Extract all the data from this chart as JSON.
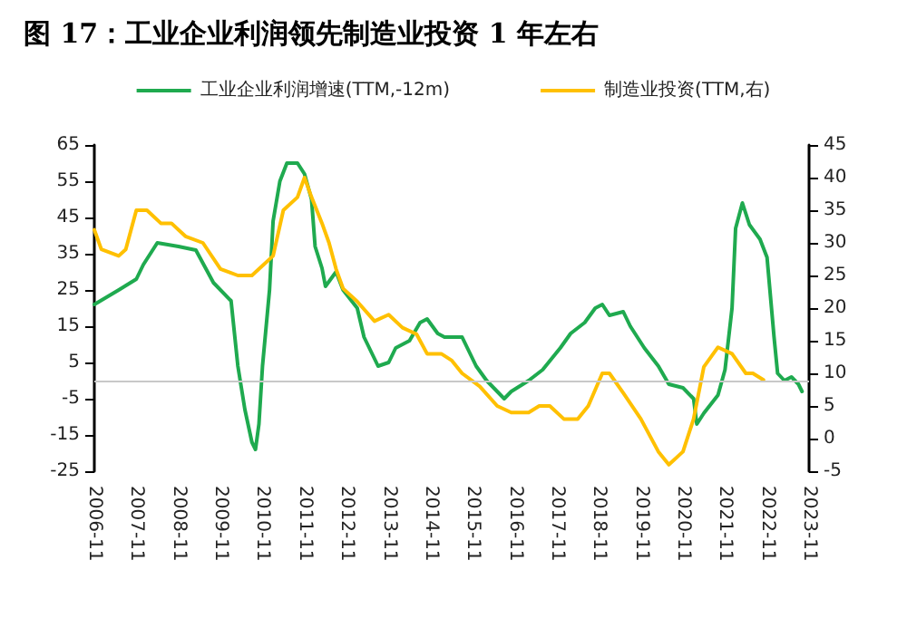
{
  "chart_data": {
    "type": "line",
    "title": "图 17：工业企业利润领先制造业投资 1 年左右",
    "legend": "top",
    "grid": false,
    "marker": "none",
    "line_style": "solid",
    "xlim": [
      "2006-11",
      "2023-11"
    ],
    "xticks": [
      "2006-11",
      "2007-11",
      "2008-11",
      "2009-11",
      "2010-11",
      "2011-11",
      "2012-11",
      "2013-11",
      "2014-11",
      "2015-11",
      "2016-11",
      "2017-11",
      "2018-11",
      "2019-11",
      "2020-11",
      "2021-11",
      "2022-11",
      "2023-11"
    ],
    "ylim": [
      -25,
      65
    ],
    "yticks": [
      -25,
      -15,
      -5,
      5,
      15,
      25,
      35,
      45,
      55,
      65
    ],
    "y2lim": [
      -5,
      45
    ],
    "y2ticks": [
      -5,
      0,
      5,
      10,
      15,
      20,
      25,
      30,
      35,
      40,
      45
    ],
    "ref_lines": [
      {
        "axis": "y",
        "value": 0,
        "color": "#c8c8c8"
      }
    ],
    "series": [
      {
        "name": "工业企业利润增速(TTM,-12m)",
        "color": "#1faa4f",
        "x": [
          "2006-11",
          "2007-06",
          "2007-11",
          "2008-01",
          "2008-05",
          "2008-11",
          "2009-04",
          "2009-09",
          "2010-02",
          "2010-04",
          "2010-06",
          "2010-08",
          "2010-09",
          "2010-10",
          "2010-11",
          "2011-01",
          "2011-02",
          "2011-04",
          "2011-06",
          "2011-09",
          "2011-11",
          "2012-01",
          "2012-02",
          "2012-04",
          "2012-05",
          "2012-08",
          "2012-10",
          "2013-02",
          "2013-04",
          "2013-08",
          "2013-11",
          "2014-01",
          "2014-05",
          "2014-08",
          "2014-10",
          "2015-01",
          "2015-03",
          "2015-05",
          "2015-08",
          "2015-12",
          "2016-03",
          "2016-08",
          "2016-10",
          "2017-03",
          "2017-07",
          "2017-12",
          "2018-03",
          "2018-07",
          "2018-10",
          "2018-12",
          "2019-02",
          "2019-06",
          "2019-08",
          "2019-12",
          "2020-04",
          "2020-07",
          "2020-11",
          "2021-02",
          "2021-03",
          "2021-05",
          "2021-09",
          "2021-11",
          "2022-01",
          "2022-02",
          "2022-04",
          "2022-06",
          "2022-09",
          "2022-11",
          "2023-01",
          "2023-02",
          "2023-04",
          "2023-06",
          "2023-08",
          "2023-09"
        ],
        "values": [
          21,
          25,
          28,
          32,
          38,
          37,
          36,
          27,
          22,
          4,
          -8,
          -17,
          -19,
          -12,
          4,
          25,
          44,
          55,
          60,
          60,
          57,
          50,
          37,
          31,
          26,
          30,
          25,
          20,
          12,
          4,
          5,
          9,
          11,
          16,
          17,
          13,
          12,
          12,
          12,
          4,
          0,
          -5,
          -3,
          0,
          3,
          9,
          13,
          16,
          20,
          21,
          18,
          19,
          15,
          9,
          4,
          -1,
          -2,
          -5,
          -12,
          -9,
          -4,
          3,
          20,
          42,
          49,
          43,
          39,
          34,
          12,
          2,
          0,
          1,
          -1,
          -3
        ]
      },
      {
        "name": "制造业投资(TTM,右)",
        "color": "#ffc000",
        "axis": "y2",
        "x": [
          "2006-11",
          "2007-01",
          "2007-06",
          "2007-08",
          "2007-11",
          "2008-02",
          "2008-06",
          "2008-09",
          "2009-01",
          "2009-06",
          "2009-11",
          "2010-04",
          "2010-08",
          "2011-02",
          "2011-05",
          "2011-09",
          "2011-11",
          "2012-01",
          "2012-04",
          "2012-06",
          "2012-08",
          "2012-10",
          "2013-02",
          "2013-07",
          "2013-11",
          "2014-03",
          "2014-07",
          "2014-10",
          "2015-02",
          "2015-05",
          "2015-08",
          "2016-01",
          "2016-06",
          "2016-10",
          "2017-03",
          "2017-06",
          "2017-09",
          "2018-01",
          "2018-05",
          "2018-08",
          "2018-12",
          "2019-02",
          "2019-06",
          "2019-11",
          "2020-04",
          "2020-07",
          "2020-11",
          "2021-02",
          "2021-05",
          "2021-09",
          "2022-01",
          "2022-05",
          "2022-07",
          "2022-10"
        ],
        "values": [
          32,
          29,
          28,
          29,
          35,
          35,
          33,
          33,
          31,
          30,
          26,
          25,
          25,
          28,
          35,
          37,
          40,
          37,
          33,
          30,
          26,
          23,
          21,
          18,
          19,
          17,
          16,
          13,
          13,
          12,
          10,
          8,
          5,
          4,
          4,
          5,
          5,
          3,
          3,
          5,
          10,
          10,
          7,
          3,
          -2,
          -4,
          -2,
          3,
          11,
          14,
          13,
          10,
          10,
          9
        ]
      }
    ]
  }
}
